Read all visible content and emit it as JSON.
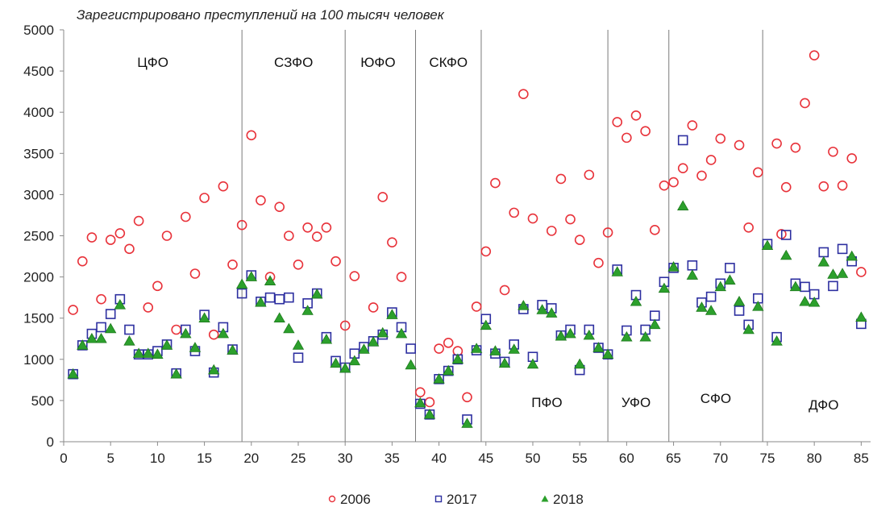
{
  "chart_data": {
    "type": "scatter",
    "title": "Зарегистрировано преступлений на 100 тысяч человек",
    "xlim": [
      0,
      86
    ],
    "ylim": [
      0,
      5000
    ],
    "xticks": [
      0,
      5,
      10,
      15,
      20,
      25,
      30,
      35,
      40,
      45,
      50,
      55,
      60,
      65,
      70,
      75,
      80,
      85
    ],
    "yticks": [
      0,
      500,
      1000,
      1500,
      2000,
      2500,
      3000,
      3500,
      4000,
      4500,
      5000
    ],
    "grid": false,
    "legend_position": "bottom",
    "dividers": [
      19,
      30,
      37.5,
      44.5,
      58,
      64.5,
      74.5
    ],
    "regions": [
      {
        "label": "ЦФО",
        "x": 9.5,
        "y": 4550
      },
      {
        "label": "СЗФО",
        "x": 24.5,
        "y": 4550
      },
      {
        "label": "ЮФО",
        "x": 33.5,
        "y": 4550
      },
      {
        "label": "СКФО",
        "x": 41,
        "y": 4550
      },
      {
        "label": "ПФО",
        "x": 51.5,
        "y": 420
      },
      {
        "label": "УФО",
        "x": 61,
        "y": 420
      },
      {
        "label": "СФО",
        "x": 69.5,
        "y": 470
      },
      {
        "label": "ДФО",
        "x": 81,
        "y": 390
      }
    ],
    "series": [
      {
        "name": "2006",
        "marker": "circle",
        "color": "#e8323a",
        "points": [
          [
            1,
            1600
          ],
          [
            2,
            2190
          ],
          [
            3,
            2480
          ],
          [
            4,
            1730
          ],
          [
            5,
            2450
          ],
          [
            6,
            2530
          ],
          [
            7,
            2340
          ],
          [
            8,
            2680
          ],
          [
            9,
            1630
          ],
          [
            10,
            1890
          ],
          [
            11,
            2500
          ],
          [
            12,
            1360
          ],
          [
            13,
            2730
          ],
          [
            14,
            2040
          ],
          [
            15,
            2960
          ],
          [
            16,
            1300
          ],
          [
            17,
            3100
          ],
          [
            18,
            2150
          ],
          [
            19,
            2630
          ],
          [
            20,
            3720
          ],
          [
            21,
            2930
          ],
          [
            22,
            2000
          ],
          [
            23,
            2850
          ],
          [
            24,
            2500
          ],
          [
            25,
            2150
          ],
          [
            26,
            2600
          ],
          [
            27,
            2490
          ],
          [
            28,
            2600
          ],
          [
            29,
            2190
          ],
          [
            30,
            1410
          ],
          [
            31,
            2010
          ],
          [
            33,
            1630
          ],
          [
            34,
            2970
          ],
          [
            35,
            2420
          ],
          [
            36,
            2000
          ],
          [
            38,
            600
          ],
          [
            39,
            480
          ],
          [
            40,
            1130
          ],
          [
            41,
            1200
          ],
          [
            42,
            1100
          ],
          [
            43,
            540
          ],
          [
            44,
            1640
          ],
          [
            45,
            2310
          ],
          [
            46,
            3140
          ],
          [
            47,
            1840
          ],
          [
            48,
            2780
          ],
          [
            49,
            4220
          ],
          [
            50,
            2710
          ],
          [
            52,
            2560
          ],
          [
            53,
            3190
          ],
          [
            54,
            2700
          ],
          [
            55,
            2450
          ],
          [
            56,
            3240
          ],
          [
            57,
            2170
          ],
          [
            58,
            2540
          ],
          [
            59,
            3880
          ],
          [
            60,
            3690
          ],
          [
            61,
            3960
          ],
          [
            62,
            3770
          ],
          [
            63,
            2570
          ],
          [
            64,
            3110
          ],
          [
            65,
            3150
          ],
          [
            66,
            3320
          ],
          [
            67,
            3840
          ],
          [
            68,
            3230
          ],
          [
            69,
            3420
          ],
          [
            70,
            3680
          ],
          [
            72,
            3600
          ],
          [
            73,
            2600
          ],
          [
            74,
            3270
          ],
          [
            76,
            3620
          ],
          [
            76.5,
            2520
          ],
          [
            77,
            3090
          ],
          [
            78,
            3570
          ],
          [
            79,
            4110
          ],
          [
            80,
            4690
          ],
          [
            81,
            3100
          ],
          [
            82,
            3520
          ],
          [
            83,
            3110
          ],
          [
            84,
            3440
          ],
          [
            85,
            2060
          ]
        ]
      },
      {
        "name": "2017",
        "marker": "square",
        "color": "#2d2fa0",
        "points": [
          [
            1,
            820
          ],
          [
            2,
            1170
          ],
          [
            3,
            1310
          ],
          [
            4,
            1390
          ],
          [
            5,
            1550
          ],
          [
            6,
            1730
          ],
          [
            7,
            1360
          ],
          [
            8,
            1060
          ],
          [
            9,
            1060
          ],
          [
            10,
            1100
          ],
          [
            11,
            1180
          ],
          [
            12,
            830
          ],
          [
            13,
            1360
          ],
          [
            14,
            1100
          ],
          [
            15,
            1540
          ],
          [
            16,
            840
          ],
          [
            17,
            1390
          ],
          [
            18,
            1120
          ],
          [
            19,
            1800
          ],
          [
            20,
            2020
          ],
          [
            21,
            1700
          ],
          [
            22,
            1750
          ],
          [
            23,
            1730
          ],
          [
            24,
            1750
          ],
          [
            25,
            1020
          ],
          [
            26,
            1680
          ],
          [
            27,
            1800
          ],
          [
            28,
            1270
          ],
          [
            29,
            980
          ],
          [
            30,
            900
          ],
          [
            31,
            1070
          ],
          [
            32,
            1150
          ],
          [
            33,
            1220
          ],
          [
            34,
            1300
          ],
          [
            35,
            1570
          ],
          [
            36,
            1390
          ],
          [
            37,
            1130
          ],
          [
            38,
            460
          ],
          [
            39,
            330
          ],
          [
            40,
            760
          ],
          [
            41,
            860
          ],
          [
            42,
            1000
          ],
          [
            43,
            270
          ],
          [
            44,
            1110
          ],
          [
            45,
            1490
          ],
          [
            46,
            1070
          ],
          [
            47,
            970
          ],
          [
            48,
            1180
          ],
          [
            49,
            1610
          ],
          [
            50,
            1030
          ],
          [
            51,
            1660
          ],
          [
            52,
            1620
          ],
          [
            53,
            1290
          ],
          [
            54,
            1360
          ],
          [
            55,
            870
          ],
          [
            56,
            1360
          ],
          [
            57,
            1140
          ],
          [
            58,
            1060
          ],
          [
            59,
            2090
          ],
          [
            60,
            1350
          ],
          [
            61,
            1780
          ],
          [
            62,
            1360
          ],
          [
            63,
            1530
          ],
          [
            64,
            1940
          ],
          [
            65,
            2110
          ],
          [
            66,
            3660
          ],
          [
            67,
            2140
          ],
          [
            68,
            1690
          ],
          [
            69,
            1760
          ],
          [
            70,
            1920
          ],
          [
            71,
            2110
          ],
          [
            72,
            1590
          ],
          [
            73,
            1420
          ],
          [
            74,
            1740
          ],
          [
            75,
            2400
          ],
          [
            76,
            1270
          ],
          [
            77,
            2510
          ],
          [
            78,
            1920
          ],
          [
            79,
            1880
          ],
          [
            80,
            1790
          ],
          [
            81,
            2300
          ],
          [
            82,
            1890
          ],
          [
            83,
            2340
          ],
          [
            84,
            2190
          ],
          [
            85,
            1430
          ]
        ]
      },
      {
        "name": "2018",
        "marker": "triangle",
        "color": "#2ca02c",
        "points": [
          [
            1,
            820
          ],
          [
            2,
            1170
          ],
          [
            3,
            1250
          ],
          [
            4,
            1250
          ],
          [
            5,
            1370
          ],
          [
            6,
            1660
          ],
          [
            7,
            1220
          ],
          [
            8,
            1070
          ],
          [
            9,
            1070
          ],
          [
            10,
            1060
          ],
          [
            11,
            1170
          ],
          [
            12,
            820
          ],
          [
            13,
            1310
          ],
          [
            14,
            1140
          ],
          [
            15,
            1500
          ],
          [
            16,
            870
          ],
          [
            17,
            1310
          ],
          [
            18,
            1110
          ],
          [
            19,
            1910
          ],
          [
            20,
            2000
          ],
          [
            21,
            1690
          ],
          [
            22,
            1950
          ],
          [
            23,
            1500
          ],
          [
            24,
            1370
          ],
          [
            25,
            1170
          ],
          [
            26,
            1590
          ],
          [
            27,
            1790
          ],
          [
            28,
            1240
          ],
          [
            29,
            950
          ],
          [
            30,
            890
          ],
          [
            31,
            980
          ],
          [
            32,
            1120
          ],
          [
            33,
            1210
          ],
          [
            34,
            1320
          ],
          [
            35,
            1540
          ],
          [
            36,
            1310
          ],
          [
            37,
            930
          ],
          [
            38,
            470
          ],
          [
            39,
            330
          ],
          [
            40,
            760
          ],
          [
            41,
            860
          ],
          [
            42,
            1000
          ],
          [
            43,
            220
          ],
          [
            44,
            1130
          ],
          [
            45,
            1410
          ],
          [
            46,
            1100
          ],
          [
            47,
            950
          ],
          [
            48,
            1120
          ],
          [
            49,
            1650
          ],
          [
            50,
            940
          ],
          [
            51,
            1600
          ],
          [
            52,
            1560
          ],
          [
            53,
            1280
          ],
          [
            54,
            1310
          ],
          [
            55,
            940
          ],
          [
            56,
            1290
          ],
          [
            57,
            1140
          ],
          [
            58,
            1060
          ],
          [
            59,
            2060
          ],
          [
            60,
            1270
          ],
          [
            61,
            1700
          ],
          [
            62,
            1270
          ],
          [
            63,
            1420
          ],
          [
            64,
            1860
          ],
          [
            65,
            2120
          ],
          [
            66,
            2860
          ],
          [
            67,
            2020
          ],
          [
            68,
            1630
          ],
          [
            69,
            1590
          ],
          [
            70,
            1880
          ],
          [
            71,
            1960
          ],
          [
            72,
            1700
          ],
          [
            73,
            1360
          ],
          [
            74,
            1640
          ],
          [
            75,
            2380
          ],
          [
            76,
            1220
          ],
          [
            77,
            2260
          ],
          [
            78,
            1880
          ],
          [
            79,
            1700
          ],
          [
            80,
            1690
          ],
          [
            81,
            2180
          ],
          [
            82,
            2030
          ],
          [
            83,
            2040
          ],
          [
            84,
            2250
          ],
          [
            85,
            1510
          ]
        ]
      }
    ]
  }
}
